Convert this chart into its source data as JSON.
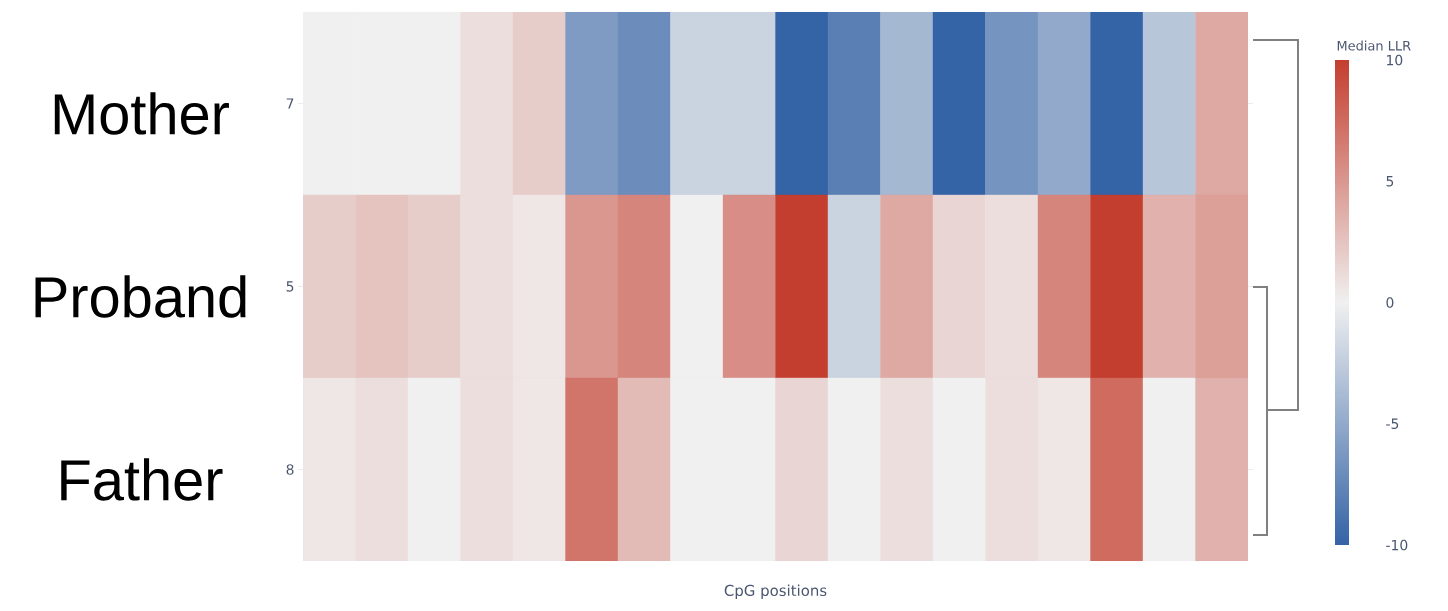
{
  "chart_data": {
    "type": "heatmap",
    "xlabel": "CpG positions",
    "clabel": "Median LLR",
    "categories": [
      null,
      null,
      null,
      null,
      null,
      null,
      null,
      null,
      null,
      null,
      null,
      null,
      null,
      null,
      null,
      null,
      null,
      null
    ],
    "y_categories": [
      "7",
      "5",
      "8"
    ],
    "cells": [
      [
        0,
        0,
        0,
        1,
        2,
        -6,
        -7,
        -2,
        -2,
        -10,
        -8,
        -4,
        -10,
        -6.5,
        -5,
        -10,
        -3,
        4
      ],
      [
        2,
        2.5,
        2,
        1,
        0.5,
        5,
        6,
        0,
        5.5,
        10,
        -2,
        4,
        1.5,
        1,
        6,
        10,
        3.5,
        4.5
      ],
      [
        0.5,
        1,
        0,
        1,
        0.5,
        7,
        3,
        0,
        0,
        1.5,
        0,
        1,
        0,
        1,
        0.5,
        7.5,
        0,
        3.5
      ]
    ],
    "clim": [
      -10,
      10
    ],
    "cticks": [
      -10,
      -5,
      0,
      5,
      10
    ],
    "annotations": [
      "Mother",
      "Proband",
      "Father"
    ]
  }
}
